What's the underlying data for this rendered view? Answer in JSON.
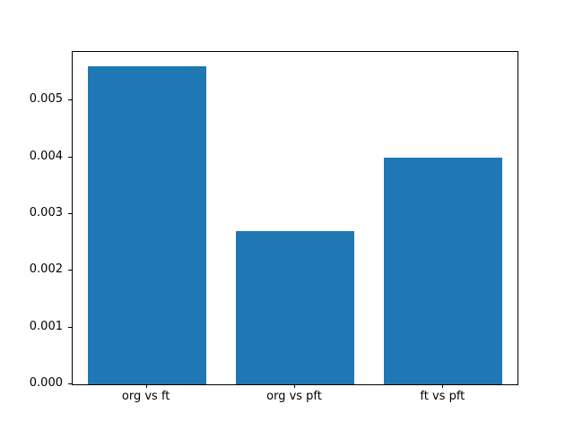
{
  "chart_data": {
    "type": "bar",
    "categories": [
      "org vs ft",
      "org vs pft",
      "ft vs pft"
    ],
    "values": [
      0.0056,
      0.0027,
      0.004
    ],
    "title": "",
    "xlabel": "",
    "ylabel": "",
    "ylim": [
      0,
      0.00586
    ],
    "yticks": [
      0,
      0.001,
      0.002,
      0.003,
      0.004,
      0.005
    ],
    "ytick_decimals": 3,
    "bar_color": "#1f77b4",
    "bar_width_fraction": 0.8,
    "grid": false,
    "legend_position": "none",
    "background_color": "#ffffff",
    "axis_color": "#000000"
  }
}
